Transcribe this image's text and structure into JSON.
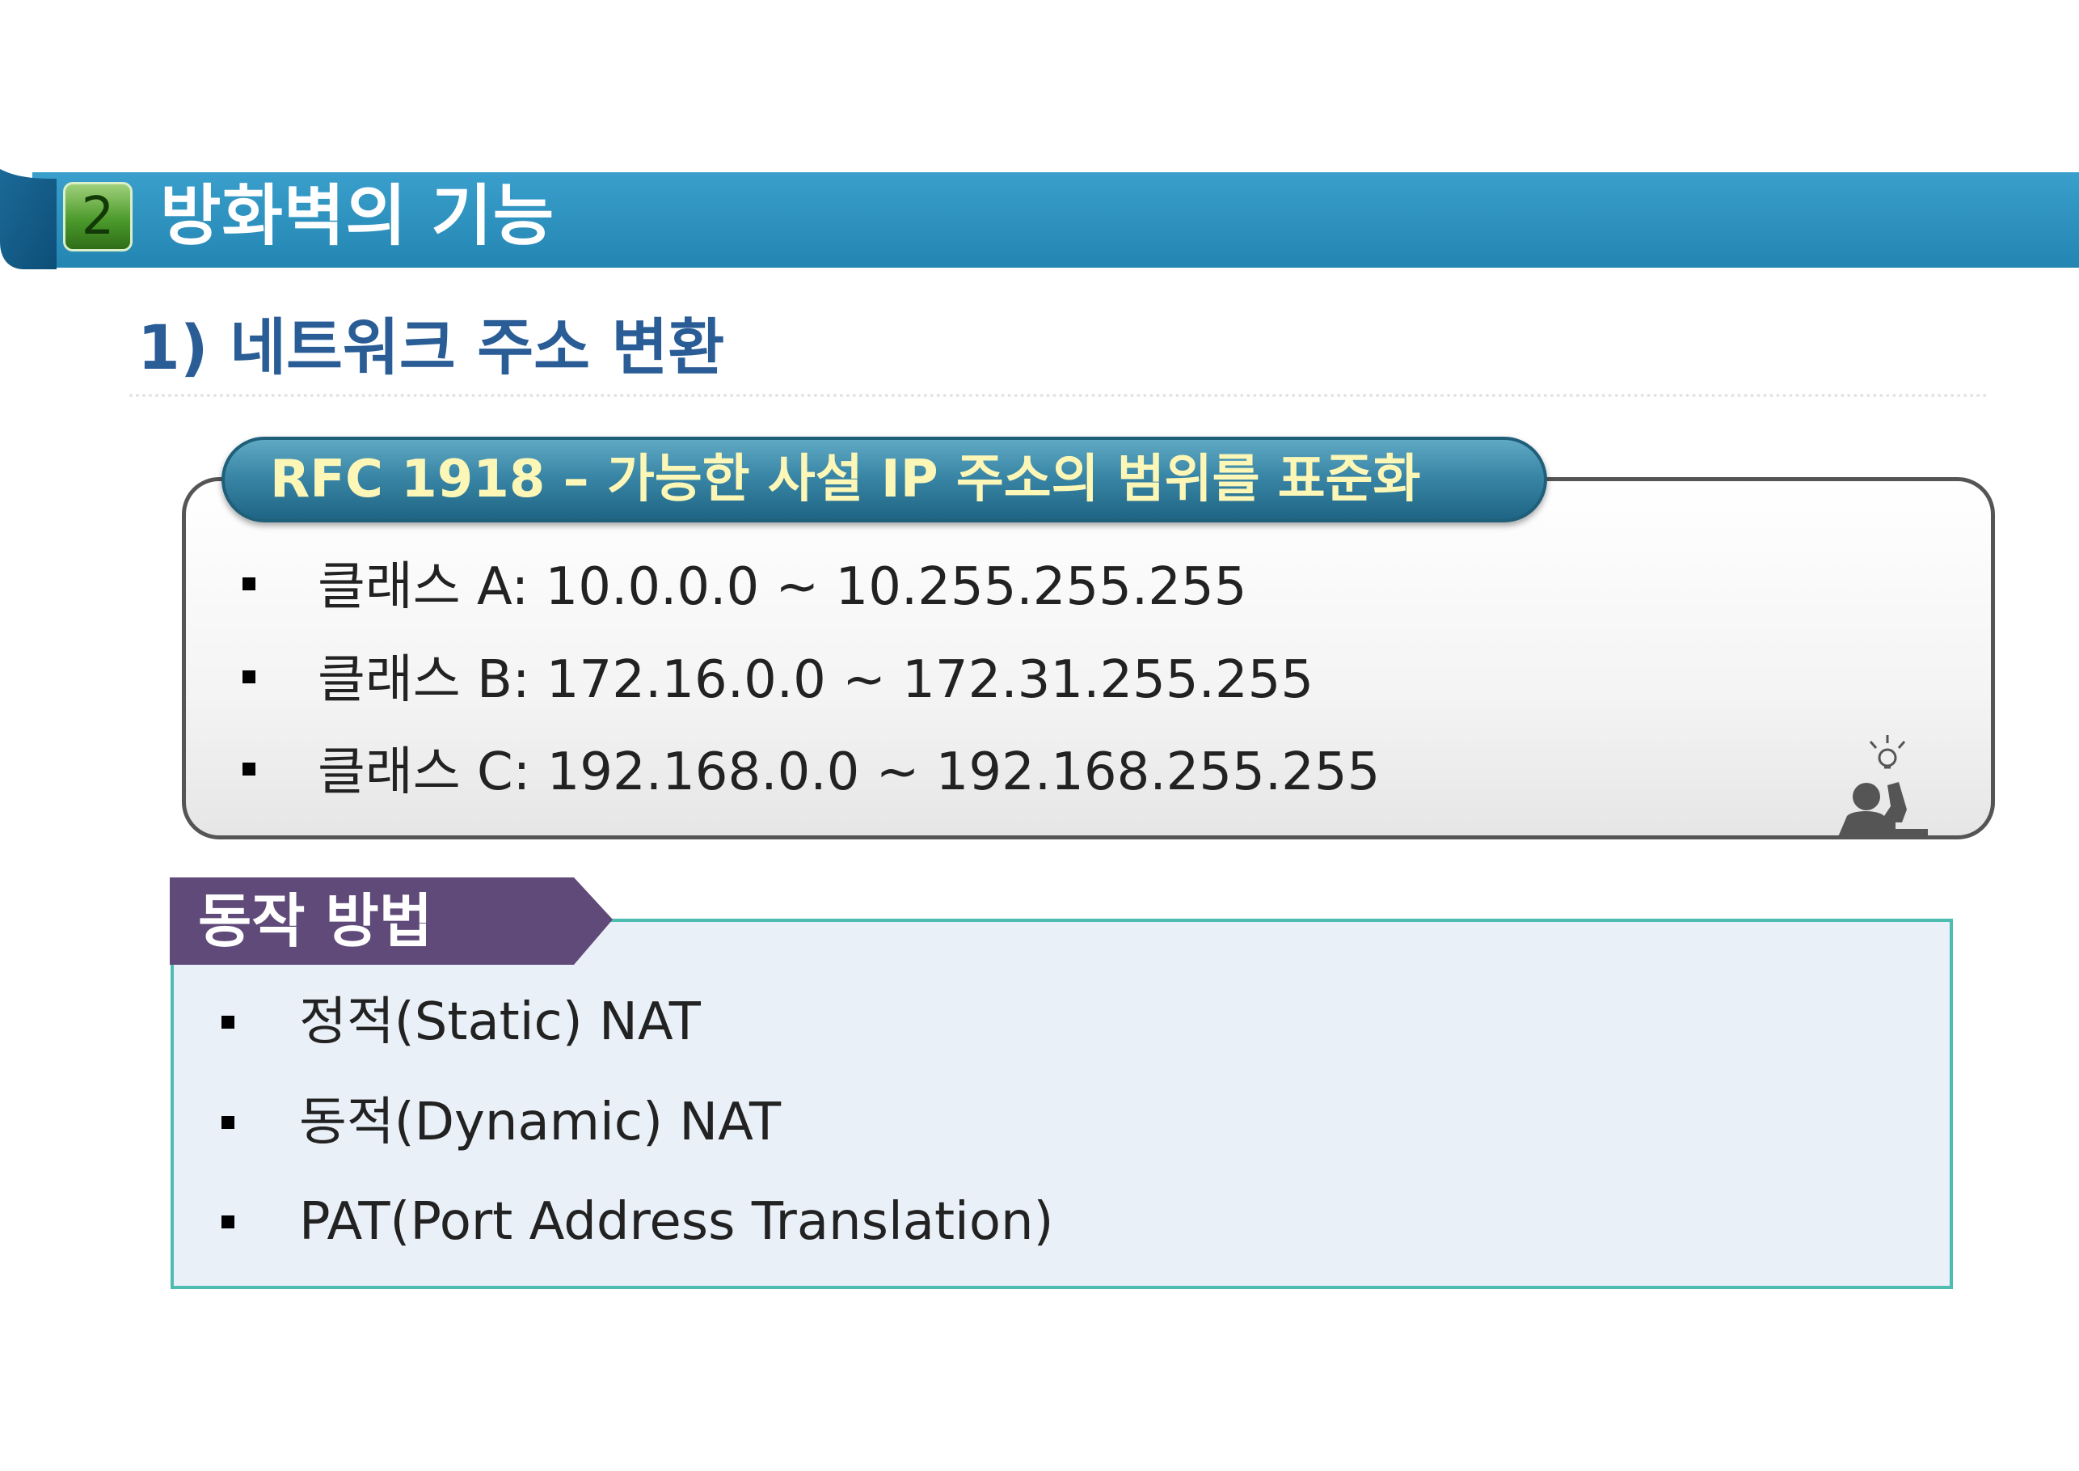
{
  "section": {
    "number": "2",
    "title": "방화벽의 기능",
    "bar_color": "#2a90bd"
  },
  "subtitle": "1) 네트워크 주소 변환",
  "rfc": {
    "title": "RFC 1918 – 가능한 사설 IP 주소의 범위를 표준화",
    "items": [
      "클래스 A: 10.0.0.0 ~ 10.255.255.255",
      "클래스 B: 172.16.0.0 ~ 172.31.255.255",
      "클래스 C: 192.168.0.0 ~ 192.168.255.255"
    ],
    "icon": "idea-person-icon"
  },
  "operation": {
    "title": "동작 방법",
    "tab_color": "#5f4a7a",
    "items": [
      "정적(Static) NAT",
      "동적(Dynamic) NAT",
      "PAT(Port Address Translation)"
    ]
  }
}
